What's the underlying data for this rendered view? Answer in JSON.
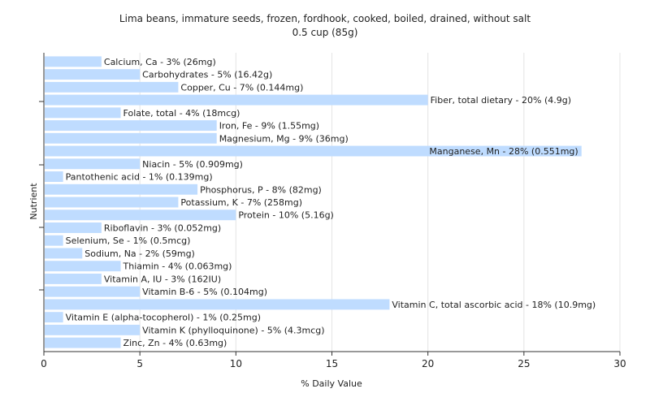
{
  "chart_data": {
    "type": "bar",
    "orientation": "horizontal",
    "title": "Lima beans, immature seeds, frozen, fordhook, cooked, boiled, drained, without salt",
    "subtitle": "0.5 cup (85g)",
    "xlabel": "% Daily Value",
    "ylabel": "Nutrient",
    "xlim": [
      0,
      30
    ],
    "xticks": [
      0,
      5,
      10,
      15,
      20,
      25,
      30
    ],
    "grid": true,
    "bar_color": "#bfdcff",
    "categories": [
      "Calcium, Ca",
      "Carbohydrates",
      "Copper, Cu",
      "Fiber, total dietary",
      "Folate, total",
      "Iron, Fe",
      "Magnesium, Mg",
      "Manganese, Mn",
      "Niacin",
      "Pantothenic acid",
      "Phosphorus, P",
      "Potassium, K",
      "Protein",
      "Riboflavin",
      "Selenium, Se",
      "Sodium, Na",
      "Thiamin",
      "Vitamin A, IU",
      "Vitamin B-6",
      "Vitamin C, total ascorbic acid",
      "Vitamin E (alpha-tocopherol)",
      "Vitamin K (phylloquinone)",
      "Zinc, Zn"
    ],
    "values": [
      3,
      5,
      7,
      20,
      4,
      9,
      9,
      28,
      5,
      1,
      8,
      7,
      10,
      3,
      1,
      2,
      4,
      3,
      5,
      18,
      1,
      5,
      4
    ],
    "labels": [
      "Calcium, Ca - 3% (26mg)",
      "Carbohydrates - 5% (16.42g)",
      "Copper, Cu - 7% (0.144mg)",
      "Fiber, total dietary - 20% (4.9g)",
      "Folate, total - 4% (18mcg)",
      "Iron, Fe - 9% (1.55mg)",
      "Magnesium, Mg - 9% (36mg)",
      "Manganese, Mn - 28% (0.551mg)",
      "Niacin - 5% (0.909mg)",
      "Pantothenic acid - 1% (0.139mg)",
      "Phosphorus, P - 8% (82mg)",
      "Potassium, K - 7% (258mg)",
      "Protein - 10% (5.16g)",
      "Riboflavin - 3% (0.052mg)",
      "Selenium, Se - 1% (0.5mcg)",
      "Sodium, Na - 2% (59mg)",
      "Thiamin - 4% (0.063mg)",
      "Vitamin A, IU - 3% (162IU)",
      "Vitamin B-6 - 5% (0.104mg)",
      "Vitamin C, total ascorbic acid - 18% (10.9mg)",
      "Vitamin E (alpha-tocopherol) - 1% (0.25mg)",
      "Vitamin K (phylloquinone) - 5% (4.3mcg)",
      "Zinc, Zn - 4% (0.63mg)"
    ]
  }
}
